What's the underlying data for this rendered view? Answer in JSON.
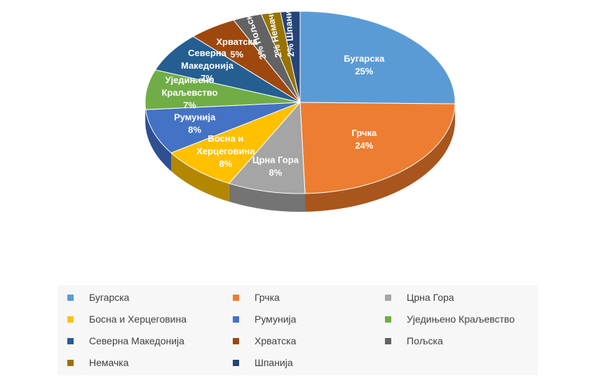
{
  "chart_data": {
    "type": "pie",
    "title": "",
    "categories": [
      "Бугарска",
      "Грчка",
      "Црна Гора",
      "Босна и Херцеговина",
      "Румунија",
      "Уједињено Краљевство",
      "Северна Македонија",
      "Хрватска",
      "Пољска",
      "Немачка",
      "Шпанија"
    ],
    "values": [
      25,
      24,
      8,
      8,
      8,
      7,
      7,
      5,
      3,
      2,
      2
    ],
    "data_labels": [
      "25%",
      "24%",
      "8%",
      "8%",
      "8%",
      "7%",
      "7%",
      "5%",
      "3%",
      "2%",
      "2%"
    ],
    "colors": [
      "#5b9bd5",
      "#ed7d31",
      "#a5a5a5",
      "#ffc000",
      "#4472c4",
      "#70ad47",
      "#255e91",
      "#9e480e",
      "#636363",
      "#997300",
      "#264478"
    ],
    "side_colors": [
      "#3a6e9e",
      "#a8561d",
      "#747474",
      "#b38700",
      "#2e5090",
      "#4e7a30",
      "#173d60",
      "#6b2f08",
      "#424242",
      "#6a4f00",
      "#172c50"
    ],
    "legend_position": "bottom",
    "style": "3d-pie"
  }
}
